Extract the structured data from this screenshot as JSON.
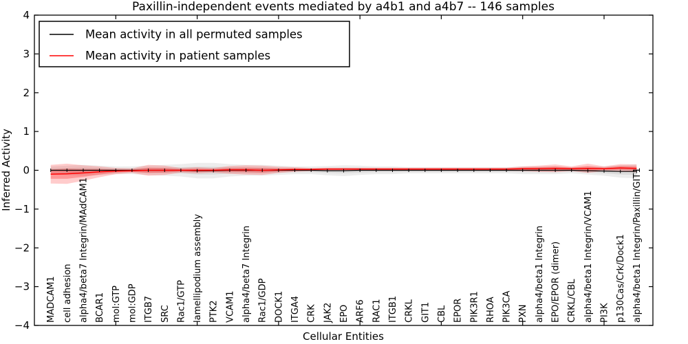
{
  "figure": {
    "background": "#ffffff"
  },
  "chart_data": {
    "type": "line",
    "title": "Paxillin-independent events mediated by a4b1 and a4b7 -- 146 samples",
    "xlabel": "Cellular Entities",
    "ylabel": "Inferred Activity",
    "ylim": [
      -4,
      4
    ],
    "xlim": [
      0,
      38
    ],
    "grid": false,
    "legend_position": "upper left",
    "ytick_values": [
      4,
      3,
      2,
      1,
      0,
      -1,
      -2,
      -3,
      -4
    ],
    "ytick_labels": [
      "4",
      "3",
      "2",
      "1",
      "0",
      "−1",
      "−2",
      "−3",
      "−4"
    ],
    "xtick_major_values": [
      5,
      10,
      15,
      20,
      25,
      30,
      35
    ],
    "categories": [
      "MADCAM1",
      "cell adhesion",
      "alpha4/beta7 Integrin/MAdCAM1",
      "BCAR1",
      "mol:GTP",
      "mol:GDP",
      "ITGB7",
      "SRC",
      "Rac1/GTP",
      "lamellipodium assembly",
      "PTK2",
      "VCAM1",
      "alpha4/beta7 Integrin",
      "Rac1/GDP",
      "DOCK1",
      "ITGA4",
      "CRK",
      "JAK2",
      "EPO",
      "ARF6",
      "RAC1",
      "ITGB1",
      "CRKL",
      "GIT1",
      "CBL",
      "EPOR",
      "PIK3R1",
      "RHOA",
      "PIK3CA",
      "PXN",
      "alpha4/beta1 Integrin",
      "EPO/EPOR (dimer)",
      "CRKL/CBL",
      "alpha4/beta1 Integrin/VCAM1",
      "PI3K",
      "p130Cas/Crk/Dock1",
      "alpha4/beta1 Integrin/Paxillin/GIT1"
    ],
    "series": [
      {
        "name": "Mean activity in all permuted samples",
        "color": "#000000",
        "mean": [
          0,
          0,
          0,
          0,
          0,
          0,
          0,
          0,
          0,
          -0.01,
          -0.01,
          0,
          0,
          0,
          0,
          0,
          0,
          -0.01,
          -0.01,
          0,
          0,
          0,
          0,
          0,
          0,
          0,
          0,
          0,
          0,
          0,
          0,
          0,
          0,
          -0.01,
          -0.02,
          -0.03,
          -0.03
        ],
        "sd": [
          0.05,
          0.06,
          0.07,
          0.06,
          0.05,
          0.05,
          0.06,
          0.07,
          0.08,
          0.1,
          0.1,
          0.08,
          0.07,
          0.07,
          0.06,
          0.05,
          0.05,
          0.06,
          0.07,
          0.06,
          0.05,
          0.05,
          0.04,
          0.04,
          0.04,
          0.04,
          0.04,
          0.04,
          0.04,
          0.05,
          0.05,
          0.05,
          0.04,
          0.05,
          0.06,
          0.08,
          0.09
        ]
      },
      {
        "name": "Mean activity in patient samples",
        "color": "#ff0000",
        "mean": [
          -0.1,
          -0.09,
          -0.07,
          -0.04,
          -0.02,
          -0.01,
          0,
          0,
          0,
          0,
          0,
          0.01,
          0.01,
          0,
          0.01,
          0.02,
          0.02,
          0.03,
          0.03,
          0.03,
          0.03,
          0.03,
          0.03,
          0.03,
          0.03,
          0.03,
          0.03,
          0.03,
          0.03,
          0.04,
          0.04,
          0.05,
          0.04,
          0.05,
          0.04,
          0.06,
          0.05
        ],
        "sd": [
          0.12,
          0.13,
          0.1,
          0.07,
          0.04,
          0.03,
          0.07,
          0.06,
          0.03,
          0.04,
          0.03,
          0.05,
          0.06,
          0.06,
          0.04,
          0.03,
          0.02,
          0.02,
          0.02,
          0.02,
          0.02,
          0.02,
          0.02,
          0.02,
          0.02,
          0.02,
          0.02,
          0.02,
          0.02,
          0.03,
          0.04,
          0.05,
          0.03,
          0.06,
          0.03,
          0.05,
          0.05
        ]
      }
    ]
  }
}
